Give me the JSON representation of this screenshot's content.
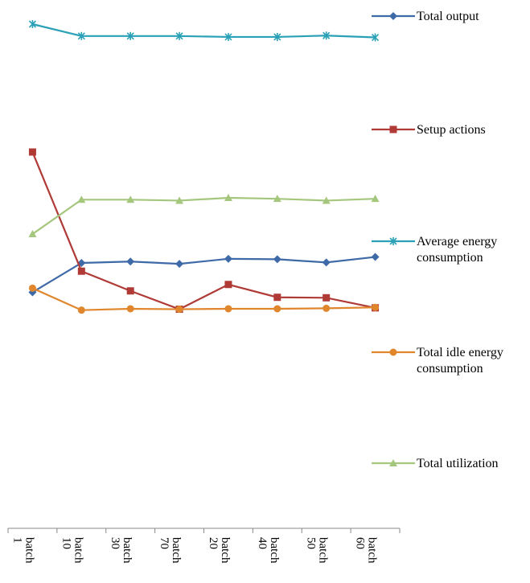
{
  "chart_data": {
    "type": "line",
    "categories": [
      "batch 1",
      "batch 10",
      "batch 30",
      "batch 70",
      "batch 20",
      "batch 40",
      "batch 50",
      "batch 60"
    ],
    "series": [
      {
        "name": "Total output",
        "color": "#3f6aa8",
        "marker": "diamond",
        "values": [
          51.5,
          57.9,
          58.2,
          57.7,
          58.8,
          58.7,
          58.0,
          59.2
        ]
      },
      {
        "name": "Setup actions",
        "color": "#b03a36",
        "marker": "square",
        "values": [
          82.1,
          56.1,
          51.8,
          47.8,
          53.2,
          50.4,
          50.3,
          48.1
        ]
      },
      {
        "name": "Average energy consumption",
        "color": "#2aa1b6",
        "marker": "star",
        "values": [
          110.0,
          107.4,
          107.4,
          107.4,
          107.2,
          107.2,
          107.5,
          107.1
        ]
      },
      {
        "name": "Total idle energy consumption",
        "color": "#e0862d",
        "marker": "circle",
        "values": [
          52.4,
          47.6,
          47.9,
          47.8,
          47.9,
          47.9,
          48.0,
          48.2
        ]
      },
      {
        "name": "Total utilization",
        "color": "#a5c77d",
        "marker": "triangle",
        "values": [
          64.2,
          71.7,
          71.7,
          71.5,
          72.1,
          71.9,
          71.5,
          71.9
        ]
      }
    ],
    "ylim": [
      0,
      115
    ],
    "grid": false,
    "legend": "right"
  }
}
